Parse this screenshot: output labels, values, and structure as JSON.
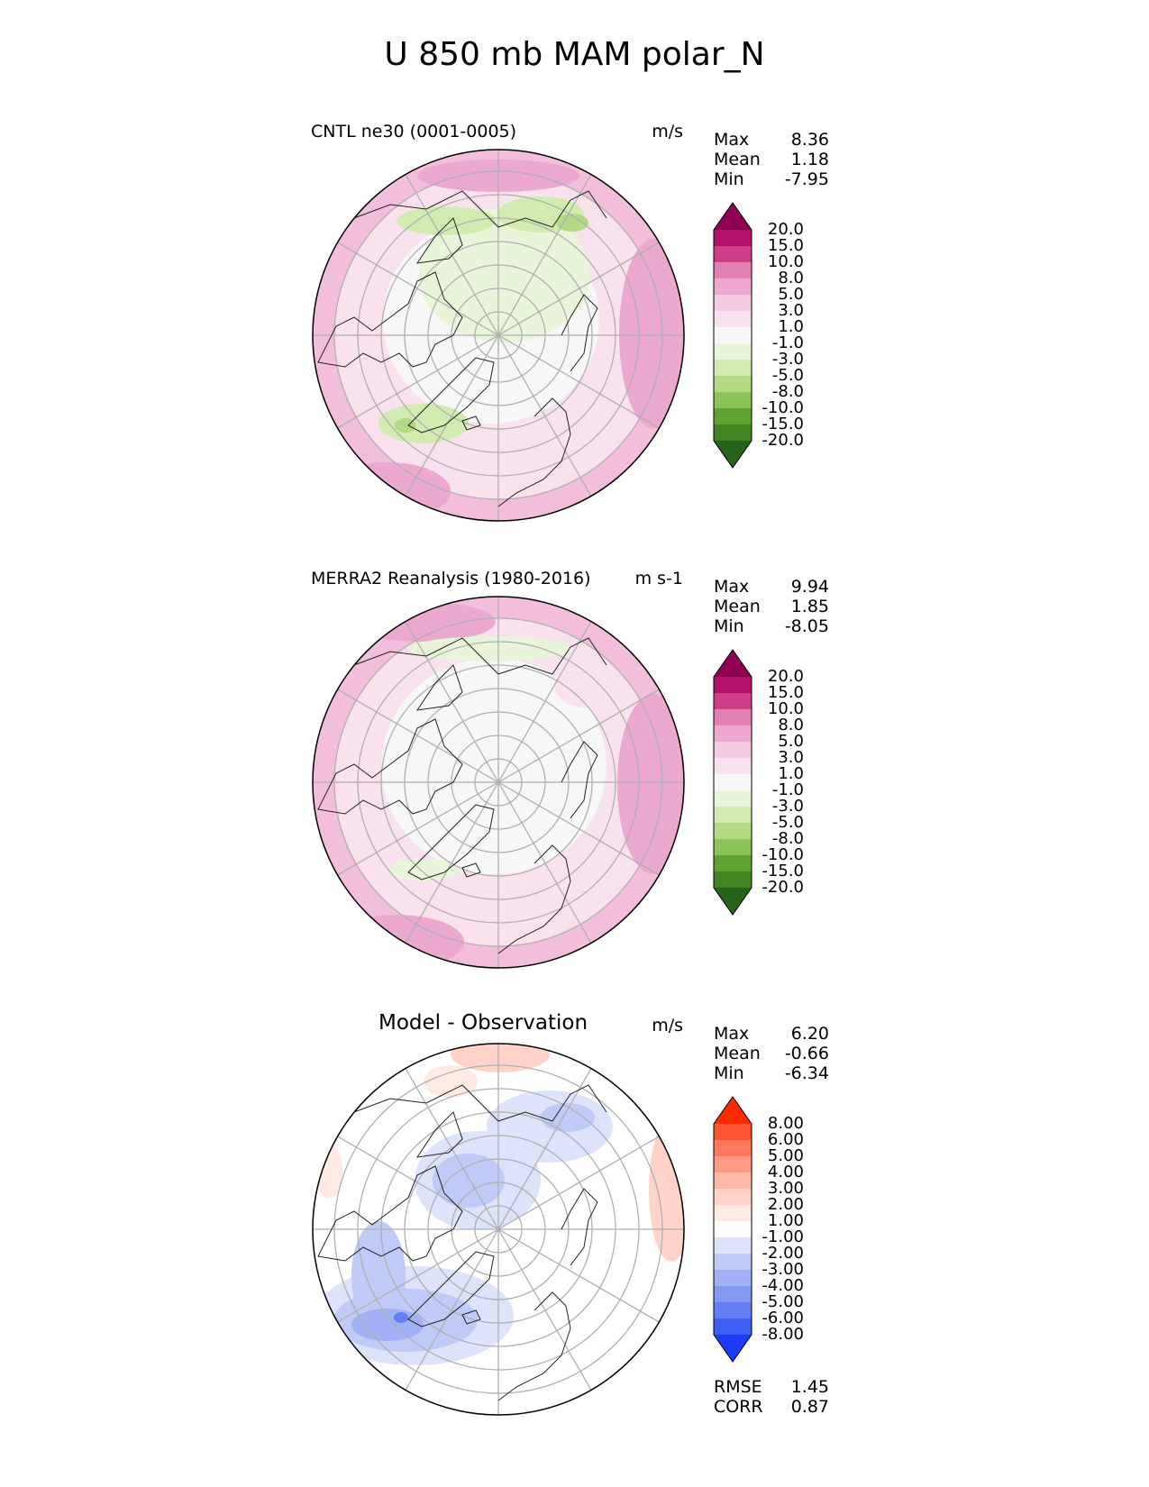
{
  "title": "U 850 mb MAM polar_N",
  "panels": [
    {
      "name": "cntl",
      "title": "CNTL ne30 (0001-0005)",
      "units": "m/s",
      "stats": [
        {
          "label": "Max",
          "value": "8.36"
        },
        {
          "label": "Mean",
          "value": "1.18"
        },
        {
          "label": "Min",
          "value": "-7.95"
        }
      ],
      "colorbar": {
        "ticks": [
          "20.0",
          "15.0",
          "10.0",
          "8.0",
          "5.0",
          "3.0",
          "1.0",
          "-1.0",
          "-3.0",
          "-5.0",
          "-8.0",
          "-10.0",
          "-15.0",
          "-20.0"
        ],
        "colors": [
          "#8e0152",
          "#b4106a",
          "#cf3f88",
          "#e27fb3",
          "#eca8cf",
          "#f5cbe3",
          "#f9e1ee",
          "#f7f7f7",
          "#e8f5d9",
          "#d1ebb0",
          "#b1da84",
          "#8cc25a",
          "#62a231",
          "#418421",
          "#276419"
        ]
      }
    },
    {
      "name": "merra2",
      "title": "MERRA2 Reanalysis (1980-2016)",
      "units": "m s-1",
      "stats": [
        {
          "label": "Max",
          "value": "9.94"
        },
        {
          "label": "Mean",
          "value": "1.85"
        },
        {
          "label": "Min",
          "value": "-8.05"
        }
      ],
      "colorbar": {
        "ticks": [
          "20.0",
          "15.0",
          "10.0",
          "8.0",
          "5.0",
          "3.0",
          "1.0",
          "-1.0",
          "-3.0",
          "-5.0",
          "-8.0",
          "-10.0",
          "-15.0",
          "-20.0"
        ],
        "colors": [
          "#8e0152",
          "#b4106a",
          "#cf3f88",
          "#e27fb3",
          "#eca8cf",
          "#f5cbe3",
          "#f9e1ee",
          "#f7f7f7",
          "#e8f5d9",
          "#d1ebb0",
          "#b1da84",
          "#8cc25a",
          "#62a231",
          "#418421",
          "#276419"
        ]
      }
    },
    {
      "name": "diff",
      "title": "Model - Observation",
      "units": "m/s",
      "stats": [
        {
          "label": "Max",
          "value": "6.20"
        },
        {
          "label": "Mean",
          "value": "-0.66"
        },
        {
          "label": "Min",
          "value": "-6.34"
        }
      ],
      "extra_stats": [
        {
          "label": "RMSE",
          "value": "1.45"
        },
        {
          "label": "CORR",
          "value": "0.87"
        }
      ],
      "colorbar": {
        "ticks": [
          "8.00",
          "6.00",
          "5.00",
          "4.00",
          "3.00",
          "2.00",
          "1.00",
          "-1.00",
          "-2.00",
          "-3.00",
          "-4.00",
          "-5.00",
          "-6.00",
          "-8.00"
        ],
        "colors": [
          "#ff2a00",
          "#ff5533",
          "#ff7a5c",
          "#ff9a85",
          "#ffb8a8",
          "#ffd3c7",
          "#ffeae4",
          "#ffffff",
          "#dde3fb",
          "#bfcaf7",
          "#a1b1f5",
          "#8398f3",
          "#637ff3",
          "#3d5ef5",
          "#1a3cf7"
        ]
      }
    }
  ],
  "chart_data": [
    {
      "type": "heatmap",
      "projection": "north polar stereographic",
      "title": "CNTL ne30 (0001-0005)",
      "variable": "U 850 mb MAM",
      "units": "m/s",
      "max": 8.36,
      "mean": 1.18,
      "min": -7.95,
      "levels": [
        -20,
        -15,
        -10,
        -8,
        -5,
        -3,
        -1,
        1,
        3,
        5,
        8,
        10,
        15,
        20
      ]
    },
    {
      "type": "heatmap",
      "projection": "north polar stereographic",
      "title": "MERRA2 Reanalysis (1980-2016)",
      "variable": "U 850 mb MAM",
      "units": "m s-1",
      "max": 9.94,
      "mean": 1.85,
      "min": -8.05,
      "levels": [
        -20,
        -15,
        -10,
        -8,
        -5,
        -3,
        -1,
        1,
        3,
        5,
        8,
        10,
        15,
        20
      ]
    },
    {
      "type": "heatmap",
      "projection": "north polar stereographic",
      "title": "Model - Observation",
      "units": "m/s",
      "max": 6.2,
      "mean": -0.66,
      "min": -6.34,
      "rmse": 1.45,
      "corr": 0.87,
      "levels": [
        -8,
        -6,
        -5,
        -4,
        -3,
        -2,
        -1,
        1,
        2,
        3,
        4,
        5,
        6,
        8
      ]
    }
  ]
}
